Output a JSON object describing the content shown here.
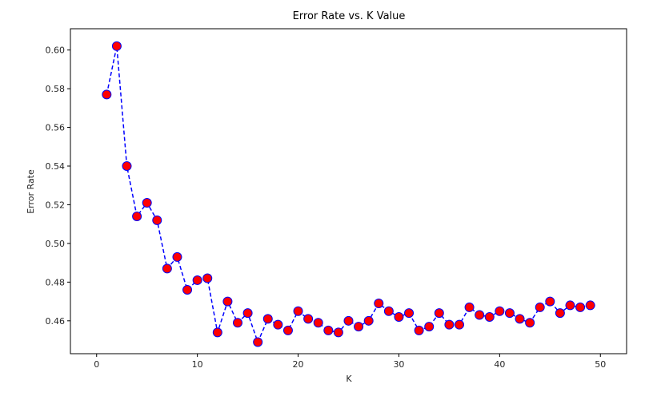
{
  "chart_data": {
    "type": "line",
    "title": "Error Rate vs. K Value",
    "xlabel": "K",
    "ylabel": "Error Rate",
    "xlim": [
      -2.6,
      52.6
    ],
    "ylim": [
      0.443,
      0.611
    ],
    "xticks": [
      0,
      10,
      20,
      30,
      40,
      50
    ],
    "yticks": [
      0.46,
      0.48,
      0.5,
      0.52,
      0.54,
      0.56,
      0.58,
      0.6
    ],
    "yticks_labels": [
      "0.46",
      "0.48",
      "0.50",
      "0.52",
      "0.54",
      "0.56",
      "0.58",
      "0.60"
    ],
    "grid": false,
    "legend": "none",
    "line_color": "#0000ff",
    "line_style": "dashed",
    "marker_face": "#ff0000",
    "marker_edge": "#0000ff",
    "series": [
      {
        "x": [
          1,
          2,
          3,
          4,
          5,
          6,
          7,
          8,
          9,
          10,
          11,
          12,
          13,
          14,
          15,
          16,
          17,
          18,
          19,
          20,
          21,
          22,
          23,
          24,
          25,
          26,
          27,
          28,
          29,
          30,
          31,
          32,
          33,
          34,
          35,
          36,
          37,
          38,
          39,
          40,
          41,
          42,
          43,
          44,
          45,
          46,
          47,
          48,
          49
        ],
        "values": [
          0.577,
          0.602,
          0.54,
          0.514,
          0.521,
          0.512,
          0.487,
          0.493,
          0.476,
          0.481,
          0.482,
          0.454,
          0.47,
          0.459,
          0.464,
          0.449,
          0.461,
          0.458,
          0.455,
          0.465,
          0.461,
          0.459,
          0.455,
          0.454,
          0.46,
          0.457,
          0.46,
          0.469,
          0.465,
          0.462,
          0.464,
          0.455,
          0.457,
          0.464,
          0.458,
          0.458,
          0.467,
          0.463,
          0.462,
          0.465,
          0.464,
          0.461,
          0.459,
          0.467,
          0.47,
          0.464,
          0.468,
          0.467,
          0.468
        ]
      }
    ]
  }
}
